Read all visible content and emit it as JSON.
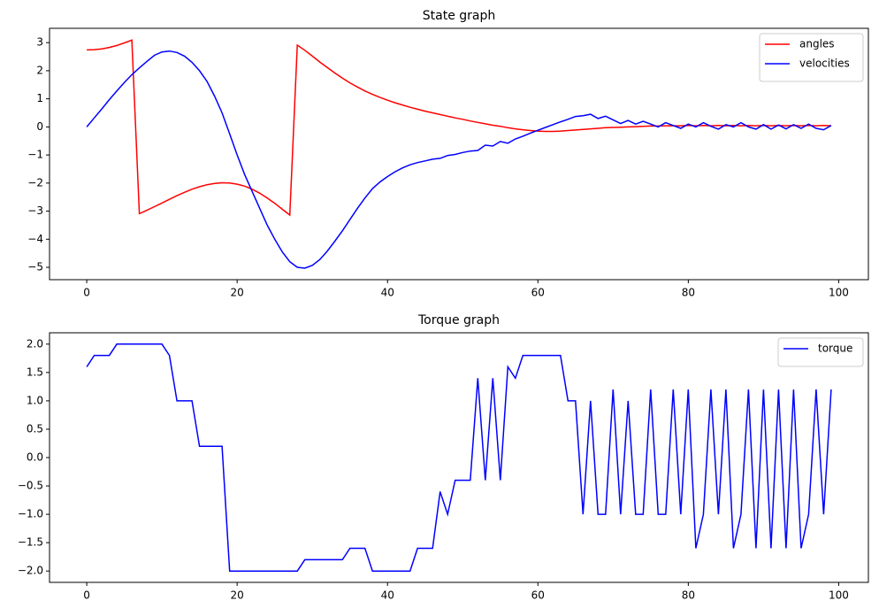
{
  "chart_data": [
    {
      "type": "line",
      "title": "State graph",
      "x": [
        0,
        1,
        2,
        3,
        4,
        5,
        6,
        7,
        8,
        9,
        10,
        11,
        12,
        13,
        14,
        15,
        16,
        17,
        18,
        19,
        20,
        21,
        22,
        23,
        24,
        25,
        26,
        27,
        28,
        29,
        30,
        31,
        32,
        33,
        34,
        35,
        36,
        37,
        38,
        39,
        40,
        41,
        42,
        43,
        44,
        45,
        46,
        47,
        48,
        49,
        50,
        51,
        52,
        53,
        54,
        55,
        56,
        57,
        58,
        59,
        60,
        61,
        62,
        63,
        64,
        65,
        66,
        67,
        68,
        69,
        70,
        71,
        72,
        73,
        74,
        75,
        76,
        77,
        78,
        79,
        80,
        81,
        82,
        83,
        84,
        85,
        86,
        87,
        88,
        89,
        90,
        91,
        92,
        93,
        94,
        95,
        96,
        97,
        98,
        99
      ],
      "series": [
        {
          "name": "angles",
          "color": "#ff0000",
          "values": [
            2.74,
            2.75,
            2.78,
            2.83,
            2.9,
            2.99,
            3.09,
            -3.09,
            -2.97,
            -2.84,
            -2.71,
            -2.58,
            -2.45,
            -2.33,
            -2.22,
            -2.13,
            -2.06,
            -2.01,
            -1.99,
            -2.0,
            -2.04,
            -2.11,
            -2.22,
            -2.36,
            -2.53,
            -2.72,
            -2.93,
            -3.14,
            2.91,
            2.73,
            2.52,
            2.31,
            2.11,
            1.92,
            1.74,
            1.57,
            1.42,
            1.28,
            1.16,
            1.05,
            0.95,
            0.86,
            0.78,
            0.7,
            0.63,
            0.56,
            0.5,
            0.44,
            0.38,
            0.32,
            0.27,
            0.21,
            0.16,
            0.11,
            0.06,
            0.02,
            -0.03,
            -0.07,
            -0.1,
            -0.13,
            -0.15,
            -0.16,
            -0.16,
            -0.15,
            -0.13,
            -0.11,
            -0.09,
            -0.07,
            -0.05,
            -0.03,
            -0.02,
            -0.01,
            0,
            0.01,
            0.02,
            0.03,
            0.03,
            0.04,
            0.04,
            0.04,
            0.05,
            0.04,
            0.05,
            0.04,
            0.05,
            0.04,
            0.05,
            0.04,
            0.05,
            0.04,
            0.05,
            0.04,
            0.05,
            0.04,
            0.05,
            0.04,
            0.05,
            0.04,
            0.05,
            0.04
          ]
        },
        {
          "name": "velocities",
          "color": "#0000ff",
          "values": [
            0,
            0.32,
            0.64,
            0.97,
            1.28,
            1.58,
            1.86,
            2.1,
            2.33,
            2.55,
            2.67,
            2.7,
            2.65,
            2.52,
            2.3,
            2.0,
            1.62,
            1.1,
            0.5,
            -0.25,
            -1.0,
            -1.7,
            -2.3,
            -2.9,
            -3.5,
            -4.0,
            -4.45,
            -4.8,
            -5.0,
            -5.03,
            -4.93,
            -4.72,
            -4.42,
            -4.07,
            -3.7,
            -3.3,
            -2.9,
            -2.53,
            -2.2,
            -1.96,
            -1.77,
            -1.6,
            -1.46,
            -1.35,
            -1.27,
            -1.21,
            -1.15,
            -1.12,
            -1.02,
            -0.98,
            -0.91,
            -0.86,
            -0.84,
            -0.65,
            -0.68,
            -0.52,
            -0.58,
            -0.43,
            -0.33,
            -0.22,
            -0.12,
            -0.02,
            0.08,
            0.18,
            0.27,
            0.37,
            0.4,
            0.45,
            0.3,
            0.38,
            0.25,
            0.12,
            0.23,
            0.1,
            0.2,
            0.1,
            0.0,
            0.15,
            0.05,
            -0.05,
            0.1,
            0.0,
            0.15,
            0.02,
            -0.08,
            0.08,
            0.0,
            0.15,
            0.0,
            -0.08,
            0.08,
            -0.08,
            0.07,
            -0.07,
            0.08,
            -0.05,
            0.1,
            -0.05,
            -0.1,
            0.05
          ]
        }
      ],
      "xlim": [
        -4.95,
        103.95
      ],
      "xticks": [
        0,
        20,
        40,
        60,
        80,
        100
      ],
      "ylim": [
        -5.44,
        3.51
      ],
      "yticks": [
        {
          "value": -5,
          "label": "−5"
        },
        {
          "value": -4,
          "label": "−4"
        },
        {
          "value": -3,
          "label": "−3"
        },
        {
          "value": -2,
          "label": "−2"
        },
        {
          "value": -1,
          "label": "−1"
        },
        0,
        1,
        2,
        3
      ],
      "legend": "upper right"
    },
    {
      "type": "line",
      "title": "Torque graph",
      "x": [
        0,
        1,
        2,
        3,
        4,
        5,
        6,
        7,
        8,
        9,
        10,
        11,
        12,
        13,
        14,
        15,
        16,
        17,
        18,
        19,
        20,
        21,
        22,
        23,
        24,
        25,
        26,
        27,
        28,
        29,
        30,
        31,
        32,
        33,
        34,
        35,
        36,
        37,
        38,
        39,
        40,
        41,
        42,
        43,
        44,
        45,
        46,
        47,
        48,
        49,
        50,
        51,
        52,
        53,
        54,
        55,
        56,
        57,
        58,
        59,
        60,
        61,
        62,
        63,
        64,
        65,
        66,
        67,
        68,
        69,
        70,
        71,
        72,
        73,
        74,
        75,
        76,
        77,
        78,
        79,
        80,
        81,
        82,
        83,
        84,
        85,
        86,
        87,
        88,
        89,
        90,
        91,
        92,
        93,
        94,
        95,
        96,
        97,
        98,
        99
      ],
      "series": [
        {
          "name": "torque",
          "color": "#0000ff",
          "values": [
            1.6,
            1.8,
            1.8,
            1.8,
            2,
            2,
            2,
            2,
            2,
            2,
            2,
            1.8,
            1.0,
            1.0,
            1.0,
            0.2,
            0.2,
            0.2,
            0.2,
            -2,
            -2,
            -2,
            -2,
            -2,
            -2,
            -2,
            -2,
            -2,
            -2,
            -1.8,
            -1.8,
            -1.8,
            -1.8,
            -1.8,
            -1.8,
            -1.6,
            -1.6,
            -1.6,
            -2,
            -2,
            -2,
            -2,
            -2,
            -2,
            -1.6,
            -1.6,
            -1.6,
            -0.6,
            -1.0,
            -0.4,
            -0.4,
            -0.4,
            1.4,
            -0.4,
            1.4,
            -0.4,
            1.6,
            1.4,
            1.8,
            1.8,
            1.8,
            1.8,
            1.8,
            1.8,
            1.0,
            1.0,
            -1,
            1.0,
            -1,
            -1,
            1.2,
            -1,
            1.0,
            -1,
            -1,
            1.2,
            -1,
            -1,
            1.2,
            -1,
            1.2,
            -1.6,
            -1,
            1.2,
            -1,
            1.2,
            -1.6,
            -1,
            1.2,
            -1.6,
            1.2,
            -1.6,
            1.2,
            -1.6,
            1.2,
            -1.6,
            -1,
            1.2,
            -1,
            1.2
          ]
        }
      ],
      "xlim": [
        -4.95,
        103.95
      ],
      "xticks": [
        0,
        20,
        40,
        60,
        80,
        100
      ],
      "ylim": [
        -2.2,
        2.2
      ],
      "yticks": [
        {
          "value": -2,
          "label": "−2.0"
        },
        {
          "value": -1.5,
          "label": "−1.5"
        },
        {
          "value": -1,
          "label": "−1.0"
        },
        {
          "value": -0.5,
          "label": "−0.5"
        },
        {
          "value": 0,
          "label": "0.0"
        },
        0.5,
        {
          "value": 1,
          "label": "1.0"
        },
        1.5,
        {
          "value": 2,
          "label": "2.0"
        }
      ],
      "legend": "upper right"
    }
  ]
}
